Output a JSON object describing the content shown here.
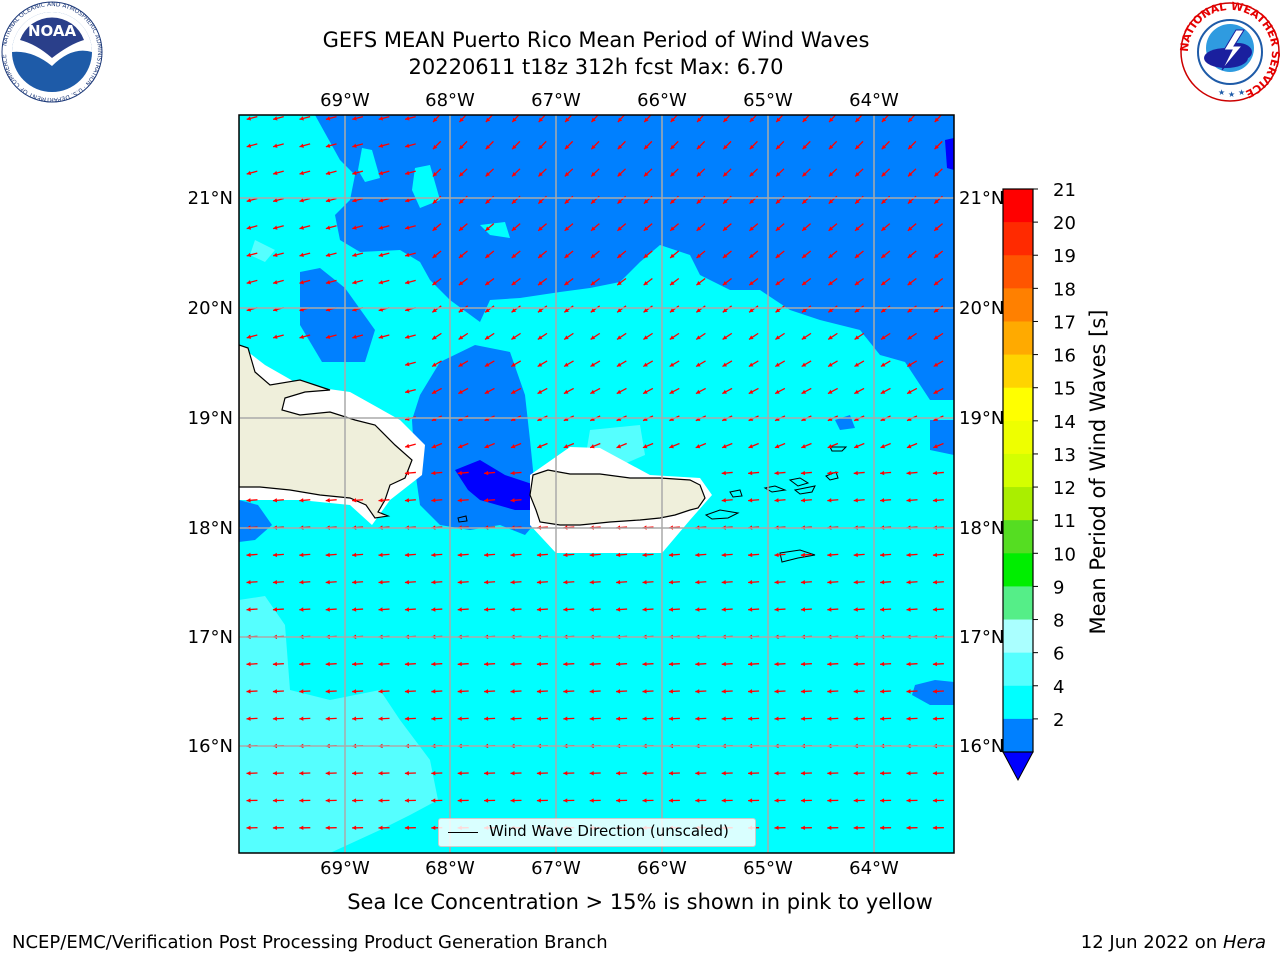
{
  "header": {
    "title_line1": "GEFS MEAN Puerto Rico Mean Period of Wind Waves",
    "title_line2": "20220611 t18z 312h fcst   Max: 6.70"
  },
  "map": {
    "lon_ticks": [
      "69°W",
      "68°W",
      "67°W",
      "66°W",
      "65°W",
      "64°W"
    ],
    "lat_ticks": [
      "21°N",
      "20°N",
      "19°N",
      "18°N",
      "17°N",
      "16°N"
    ],
    "legend_label": "Wind Wave Direction (unscaled)",
    "arrow_color": "#ff0000",
    "land_color": "#efefdb",
    "ocean_colors": {
      "2-4": "#0080ff",
      "4-6": "#00ffff",
      "6-8": "#55ffff",
      "below-2": "#0000ff"
    }
  },
  "colorbar": {
    "title": "Mean Period of Wind Waves [s]",
    "ticks": [
      "21",
      "20",
      "19",
      "18",
      "17",
      "16",
      "15",
      "14",
      "13",
      "12",
      "11",
      "10",
      "9",
      "8",
      "6",
      "4",
      "2"
    ],
    "colors": [
      "#ff0000",
      "#ff2a00",
      "#ff5500",
      "#ff8000",
      "#ffaa00",
      "#ffd400",
      "#ffff00",
      "#eeff00",
      "#d4ff00",
      "#aaee00",
      "#55dd22",
      "#00ee00",
      "#55ee88",
      "#aaffff",
      "#55ffff",
      "#00ffff",
      "#0080ff"
    ],
    "extend_color": "#0000ff"
  },
  "caption": "Sea Ice Concentration > 15% is shown in pink to yellow",
  "footer": {
    "left": "NCEP/EMC/Verification Post Processing Product Generation Branch",
    "right_date": "12 Jun 2022 on ",
    "right_host": "Hera"
  },
  "logos": {
    "noaa_text": "NOAA",
    "noaa_ring": "NATIONAL OCEANIC AND ATMOSPHERIC ADMINISTRATION · U.S. DEPARTMENT OF COMMERCE ·",
    "nws_ring": "NATIONAL WEATHER SERVICE"
  }
}
